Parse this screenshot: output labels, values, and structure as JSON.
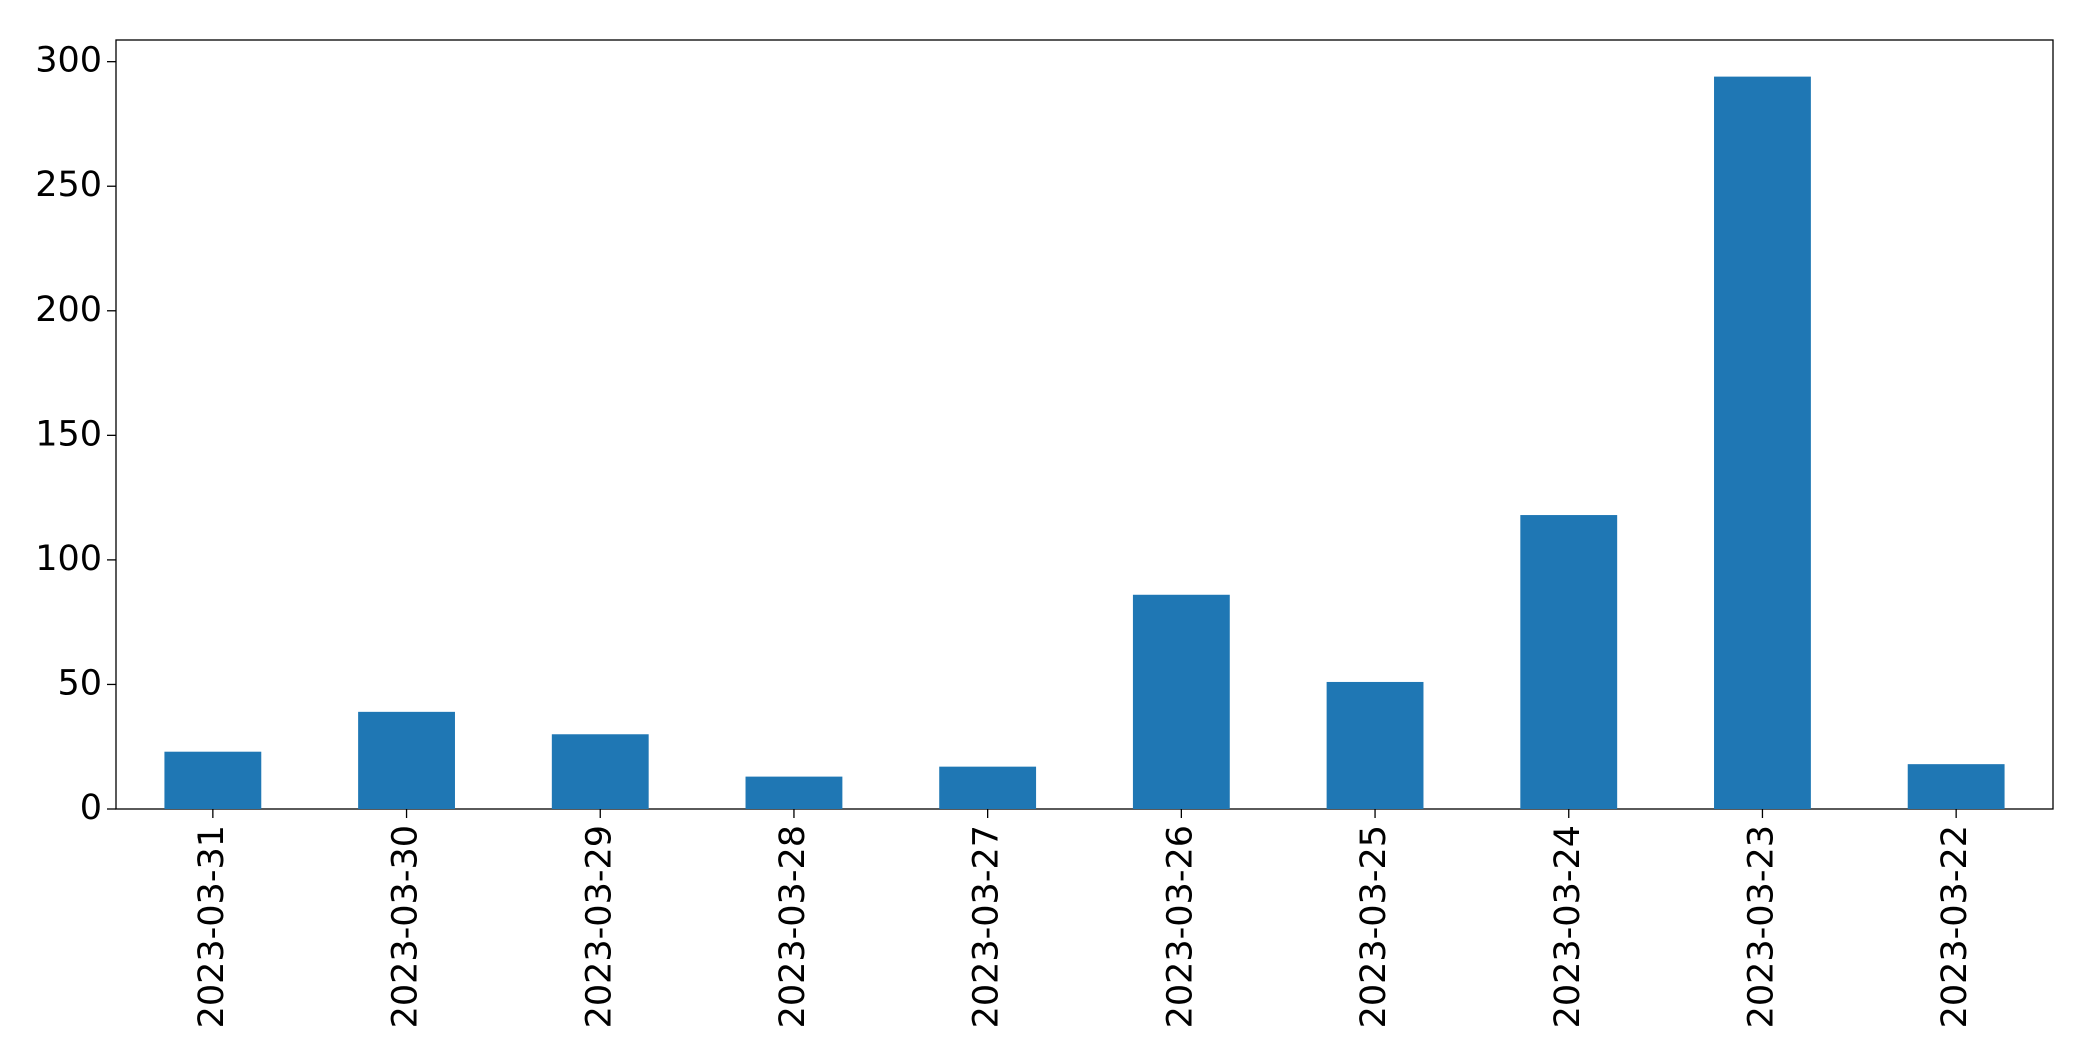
{
  "chart_data": {
    "type": "bar",
    "categories": [
      "2023-03-31",
      "2023-03-30",
      "2023-03-29",
      "2023-03-28",
      "2023-03-27",
      "2023-03-26",
      "2023-03-25",
      "2023-03-24",
      "2023-03-23",
      "2023-03-22"
    ],
    "values": [
      23,
      39,
      30,
      13,
      17,
      86,
      51,
      118,
      294,
      18
    ],
    "color": "#1f77b4",
    "ylim": [
      0,
      308.7
    ],
    "yticks": [
      0,
      50,
      100,
      150,
      200,
      250,
      300
    ],
    "grid": false
  }
}
